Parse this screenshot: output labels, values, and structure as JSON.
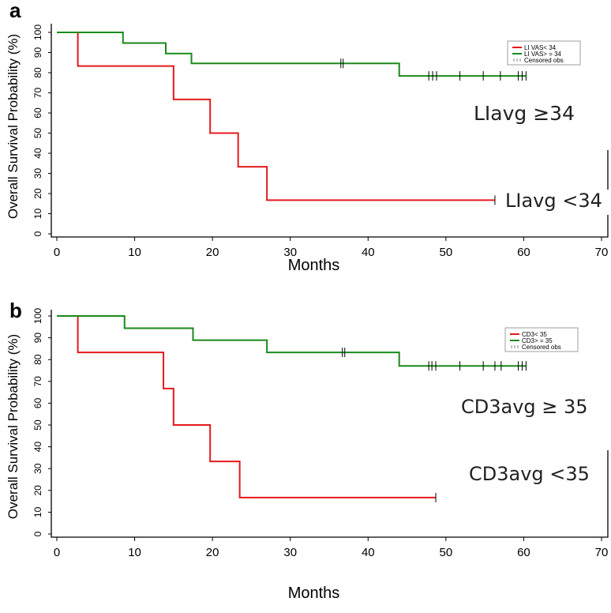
{
  "chart_data": [
    {
      "type": "line",
      "subtype": "kaplan-meier step",
      "panel_label": "a",
      "xlabel": "Months",
      "ylabel": "Overall Survival Probability (%)",
      "xlim": [
        0,
        70
      ],
      "ylim": [
        0,
        100
      ],
      "xticks": [
        0,
        10,
        20,
        30,
        40,
        50,
        60,
        70
      ],
      "yticks": [
        0,
        10,
        20,
        30,
        40,
        50,
        60,
        70,
        80,
        90,
        100
      ],
      "legend": {
        "placement": "top-right",
        "entries": [
          "LI VAS< 34",
          "LI VAS> = 34",
          "Censored obs"
        ]
      },
      "annotations": [
        "LIavg ≥34",
        "LIavg <34"
      ],
      "series": [
        {
          "name": "LI VAS< 34",
          "color": "#e41a1c",
          "end": 56.3,
          "steps": [
            [
              0,
              100
            ],
            [
              2.7,
              83.3
            ],
            [
              15,
              66.7
            ],
            [
              19.7,
              50
            ],
            [
              23.3,
              33.3
            ],
            [
              27,
              16.7
            ]
          ],
          "censored": [
            56.3
          ]
        },
        {
          "name": "LI VAS> = 34",
          "color": "#1a8a1a",
          "end": 60.3,
          "steps": [
            [
              0,
              100
            ],
            [
              8.5,
              94.7
            ],
            [
              14,
              89.5
            ],
            [
              17.3,
              84.6
            ],
            [
              44,
              78.4
            ]
          ],
          "censored": [
            36.5,
            36.8,
            47.8,
            48.3,
            48.8,
            51.8,
            54.8,
            57,
            59.3,
            59.8,
            60.3
          ]
        }
      ]
    },
    {
      "type": "line",
      "subtype": "kaplan-meier step",
      "panel_label": "b",
      "xlabel": "Months",
      "ylabel": "Overall Survival Probability (%)",
      "xlim": [
        0,
        70
      ],
      "ylim": [
        0,
        100
      ],
      "xticks": [
        0,
        10,
        20,
        30,
        40,
        50,
        60,
        70
      ],
      "yticks": [
        0,
        10,
        20,
        30,
        40,
        50,
        60,
        70,
        80,
        90,
        100
      ],
      "legend": {
        "placement": "top-right",
        "entries": [
          "CD3< 35",
          "CD3> = 35",
          "Censored obs"
        ]
      },
      "annotations": [
        "CD3avg ≥ 35",
        "CD3avg <35"
      ],
      "series": [
        {
          "name": "CD3< 35",
          "color": "#e41a1c",
          "end": 48.7,
          "steps": [
            [
              0,
              100
            ],
            [
              2.7,
              83.3
            ],
            [
              13.7,
              66.7
            ],
            [
              15,
              50
            ],
            [
              19.7,
              33.3
            ],
            [
              23.5,
              16.7
            ]
          ],
          "censored": [
            48.7
          ]
        },
        {
          "name": "CD3> = 35",
          "color": "#1a8a1a",
          "end": 60.3,
          "steps": [
            [
              0,
              100
            ],
            [
              8.7,
              94.4
            ],
            [
              17.5,
              88.9
            ],
            [
              27,
              83.3
            ],
            [
              44,
              77.1
            ]
          ],
          "censored": [
            36.7,
            37,
            47.8,
            48.2,
            48.7,
            51.8,
            54.8,
            56.3,
            57.1,
            59.3,
            59.8,
            60.3
          ]
        }
      ]
    }
  ]
}
